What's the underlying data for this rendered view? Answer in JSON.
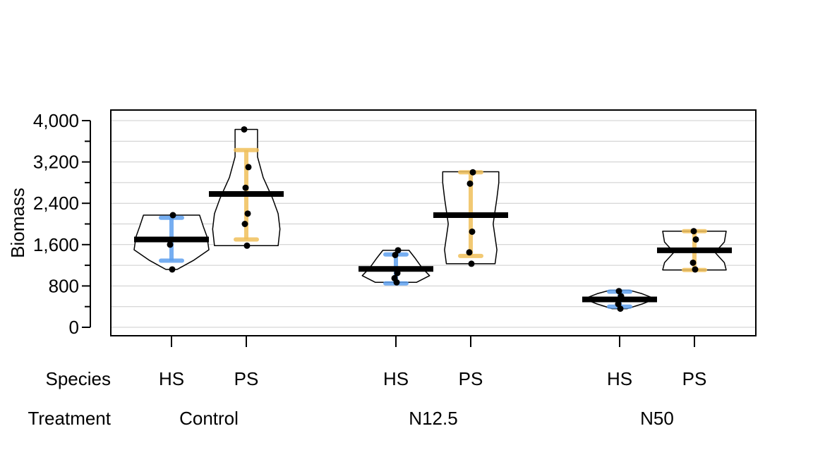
{
  "chart_data": {
    "type": "violin",
    "ylabel": "Biomass",
    "ylim": [
      -150,
      4200
    ],
    "yticks": [
      0,
      800,
      1600,
      2400,
      3200,
      4000
    ],
    "ytick_labels": [
      "0",
      "800",
      "1,600",
      "2,400",
      "3,200",
      "4,000"
    ],
    "ygrid_step": 400,
    "grid": "horizontal",
    "factor_row_labels": {
      "species": "Species",
      "treatment": "Treatment"
    },
    "colors": {
      "HS": "#5ea0ee",
      "PS": "#f0c05a",
      "mean": "#000000",
      "outline": "#000000",
      "grid": "#cccccc"
    },
    "groups": [
      {
        "species": "HS",
        "treatment": "Control",
        "mean": 1700,
        "ci": [
          1290,
          2120
        ],
        "points": [
          1120,
          1600,
          2170
        ],
        "violin": [
          [
            1120,
            0.15
          ],
          [
            1300,
            0.6
          ],
          [
            1500,
            1.0
          ],
          [
            1750,
            0.95
          ],
          [
            1950,
            0.85
          ],
          [
            2170,
            0.75
          ]
        ]
      },
      {
        "species": "PS",
        "treatment": "Control",
        "mean": 2580,
        "ci": [
          1700,
          3430
        ],
        "points": [
          1580,
          2000,
          2200,
          2700,
          3100,
          3830
        ],
        "violin": [
          [
            1580,
            0.85
          ],
          [
            1900,
            0.9
          ],
          [
            2200,
            0.85
          ],
          [
            2500,
            0.7
          ],
          [
            2900,
            0.45
          ],
          [
            3300,
            0.3
          ],
          [
            3830,
            0.3
          ]
        ]
      },
      {
        "species": "HS",
        "treatment": "N12.5",
        "mean": 1130,
        "ci": [
          850,
          1410
        ],
        "points": [
          870,
          950,
          1050,
          1400,
          1490
        ],
        "violin": [
          [
            870,
            0.55
          ],
          [
            1000,
            0.9
          ],
          [
            1150,
            0.7
          ],
          [
            1350,
            0.5
          ],
          [
            1490,
            0.35
          ]
        ]
      },
      {
        "species": "PS",
        "treatment": "N12.5",
        "mean": 2170,
        "ci": [
          1380,
          3000
        ],
        "points": [
          1230,
          1450,
          1850,
          2780,
          3000
        ],
        "violin": [
          [
            1230,
            0.65
          ],
          [
            1500,
            0.7
          ],
          [
            2000,
            0.6
          ],
          [
            2500,
            0.7
          ],
          [
            2800,
            0.75
          ],
          [
            3010,
            0.75
          ]
        ]
      },
      {
        "species": "HS",
        "treatment": "N50",
        "mean": 540,
        "ci": [
          400,
          690
        ],
        "points": [
          360,
          450,
          600,
          700
        ],
        "violin": [
          [
            360,
            0.2
          ],
          [
            450,
            0.6
          ],
          [
            550,
            0.95
          ],
          [
            650,
            0.6
          ],
          [
            720,
            0.25
          ]
        ]
      },
      {
        "species": "PS",
        "treatment": "N50",
        "mean": 1490,
        "ci": [
          1110,
          1860
        ],
        "points": [
          1120,
          1250,
          1700,
          1860
        ],
        "violin": [
          [
            1110,
            0.85
          ],
          [
            1250,
            0.8
          ],
          [
            1450,
            0.55
          ],
          [
            1650,
            0.8
          ],
          [
            1860,
            0.85
          ]
        ]
      }
    ],
    "treatments": [
      "Control",
      "N12.5",
      "N50"
    ]
  }
}
